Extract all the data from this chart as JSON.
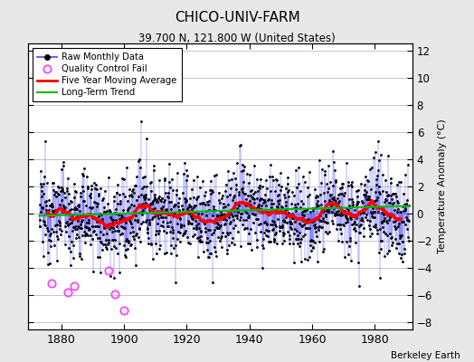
{
  "title": "CHICO-UNIV-FARM",
  "subtitle": "39.700 N, 121.800 W (United States)",
  "attribution": "Berkeley Earth",
  "ylabel": "Temperature Anomaly (°C)",
  "xlim": [
    1869.5,
    1992
  ],
  "ylim": [
    -8.5,
    12.5
  ],
  "yticks": [
    -8,
    -6,
    -4,
    -2,
    0,
    2,
    4,
    6,
    8,
    10,
    12
  ],
  "xticks": [
    1880,
    1900,
    1920,
    1940,
    1960,
    1980
  ],
  "start_year": 1873,
  "end_year": 1991,
  "background_color": "#e8e8e8",
  "plot_bg_color": "#ffffff",
  "line_color": "#4444ff",
  "ma_color": "#ff0000",
  "trend_color": "#00bb00",
  "qc_color": "#ff44ff",
  "seed": 12345,
  "noise_std": 1.6,
  "ma_window": 60,
  "qc_years": [
    1877,
    1882,
    1884,
    1895,
    1897,
    1900
  ],
  "qc_values": [
    -5.1,
    -5.8,
    -5.3,
    -4.2,
    -5.9,
    -7.1
  ]
}
